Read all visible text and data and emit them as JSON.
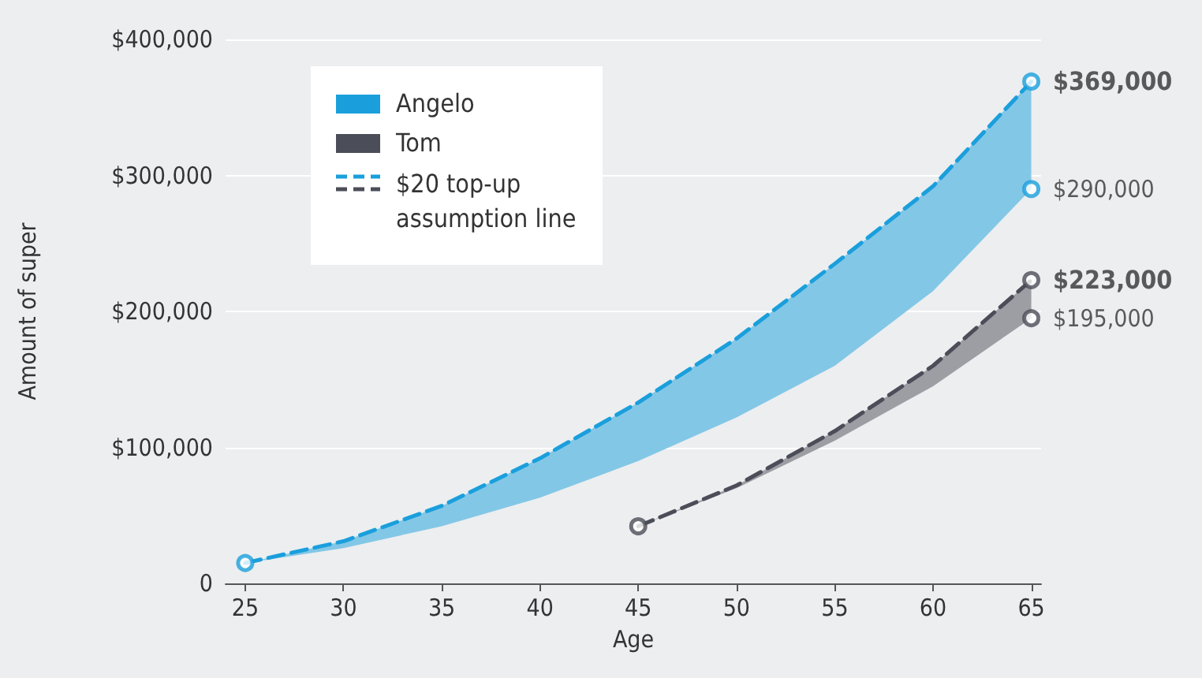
{
  "chart_data": {
    "type": "line",
    "xlabel": "Age",
    "ylabel": "Amount of super",
    "x": [
      25,
      30,
      35,
      40,
      45,
      50,
      55,
      60,
      65
    ],
    "series": [
      {
        "name": "Angelo",
        "color": "#1a9fdc",
        "values": [
          15000,
          31000,
          57000,
          92000,
          133000,
          180000,
          235000,
          292000,
          369000
        ],
        "lower": [
          15000,
          26000,
          42000,
          63000,
          90000,
          122000,
          160000,
          215000,
          290000
        ],
        "upper": [
          15000,
          31000,
          57000,
          92000,
          133000,
          180000,
          235000,
          292000,
          369000
        ]
      },
      {
        "name": "Tom",
        "color": "#4b4e58",
        "x": [
          45,
          50,
          55,
          60,
          65
        ],
        "values": [
          42000,
          72000,
          112000,
          160000,
          223000
        ],
        "lower": [
          42000,
          70000,
          105000,
          145000,
          195000
        ],
        "upper": [
          42000,
          72000,
          112000,
          160000,
          223000
        ]
      },
      {
        "type": "scatter",
        "marker": "circle",
        "color": "#1a9fdc",
        "x": [
          25,
          65,
          65
        ],
        "values": [
          15000,
          369000,
          290000
        ],
        "value_labels": [
          null,
          "$369,000",
          "$290,000"
        ]
      },
      {
        "type": "scatter",
        "marker": "circle",
        "color": "#4b4e58",
        "x": [
          45,
          65,
          65
        ],
        "values": [
          42000,
          223000,
          195000
        ],
        "value_labels": [
          null,
          "$223,000",
          "$195,000"
        ]
      }
    ],
    "annotations": [
      "$20 top-up assumption line"
    ],
    "xlim": [
      24,
      65.5
    ],
    "xticks": [
      25,
      30,
      35,
      40,
      45,
      50,
      55,
      60,
      65
    ],
    "ylim": [
      0,
      400000
    ],
    "yticks": [
      {
        "value": 0,
        "label": "0"
      },
      {
        "value": 100000,
        "label": "$100,000"
      },
      {
        "value": 200000,
        "label": "$200,000"
      },
      {
        "value": 300000,
        "label": "$300,000"
      },
      {
        "value": 400000,
        "label": "$400,000"
      }
    ],
    "grid": "y",
    "legend": "top left",
    "line_style": "dashed"
  }
}
